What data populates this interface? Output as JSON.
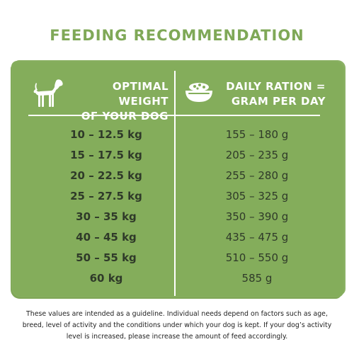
{
  "title": "FEEDING RECOMMENDATION",
  "headers": {
    "weight_line1": "OPTIMAL WEIGHT",
    "weight_line2": "OF YOUR DOG",
    "ration_line1": "DAILY RATION =",
    "ration_line2": "GRAM PER DAY"
  },
  "icons": {
    "weight_icon": "dog-icon",
    "ration_icon": "food-bowl-icon"
  },
  "rows": [
    {
      "weight": "10 – 12.5 kg",
      "ration": "155 – 180 g"
    },
    {
      "weight": "15 – 17.5 kg",
      "ration": "205 – 235 g"
    },
    {
      "weight": "20 – 22.5 kg",
      "ration": "255 – 280 g"
    },
    {
      "weight": "25 – 27.5 kg",
      "ration": "305 – 325 g"
    },
    {
      "weight": "30 – 35 kg",
      "ration": "350 – 390 g"
    },
    {
      "weight": "40 – 45 kg",
      "ration": "435 – 475 g"
    },
    {
      "weight": "50 – 55 kg",
      "ration": "510 – 550 g"
    },
    {
      "weight": "60 kg",
      "ration": "585 g"
    }
  ],
  "footnote": "These values are intended as a guideline. Individual needs depend on factors such as age, breed, level of activity and the conditions under which your dog is kept. If your dog’s activity level is increased, please increase the amount of feed accordingly.",
  "colors": {
    "panel": "#84ad5b",
    "title": "#7fa857",
    "text_dark": "#2f3a29",
    "header_text": "#ffffff"
  }
}
